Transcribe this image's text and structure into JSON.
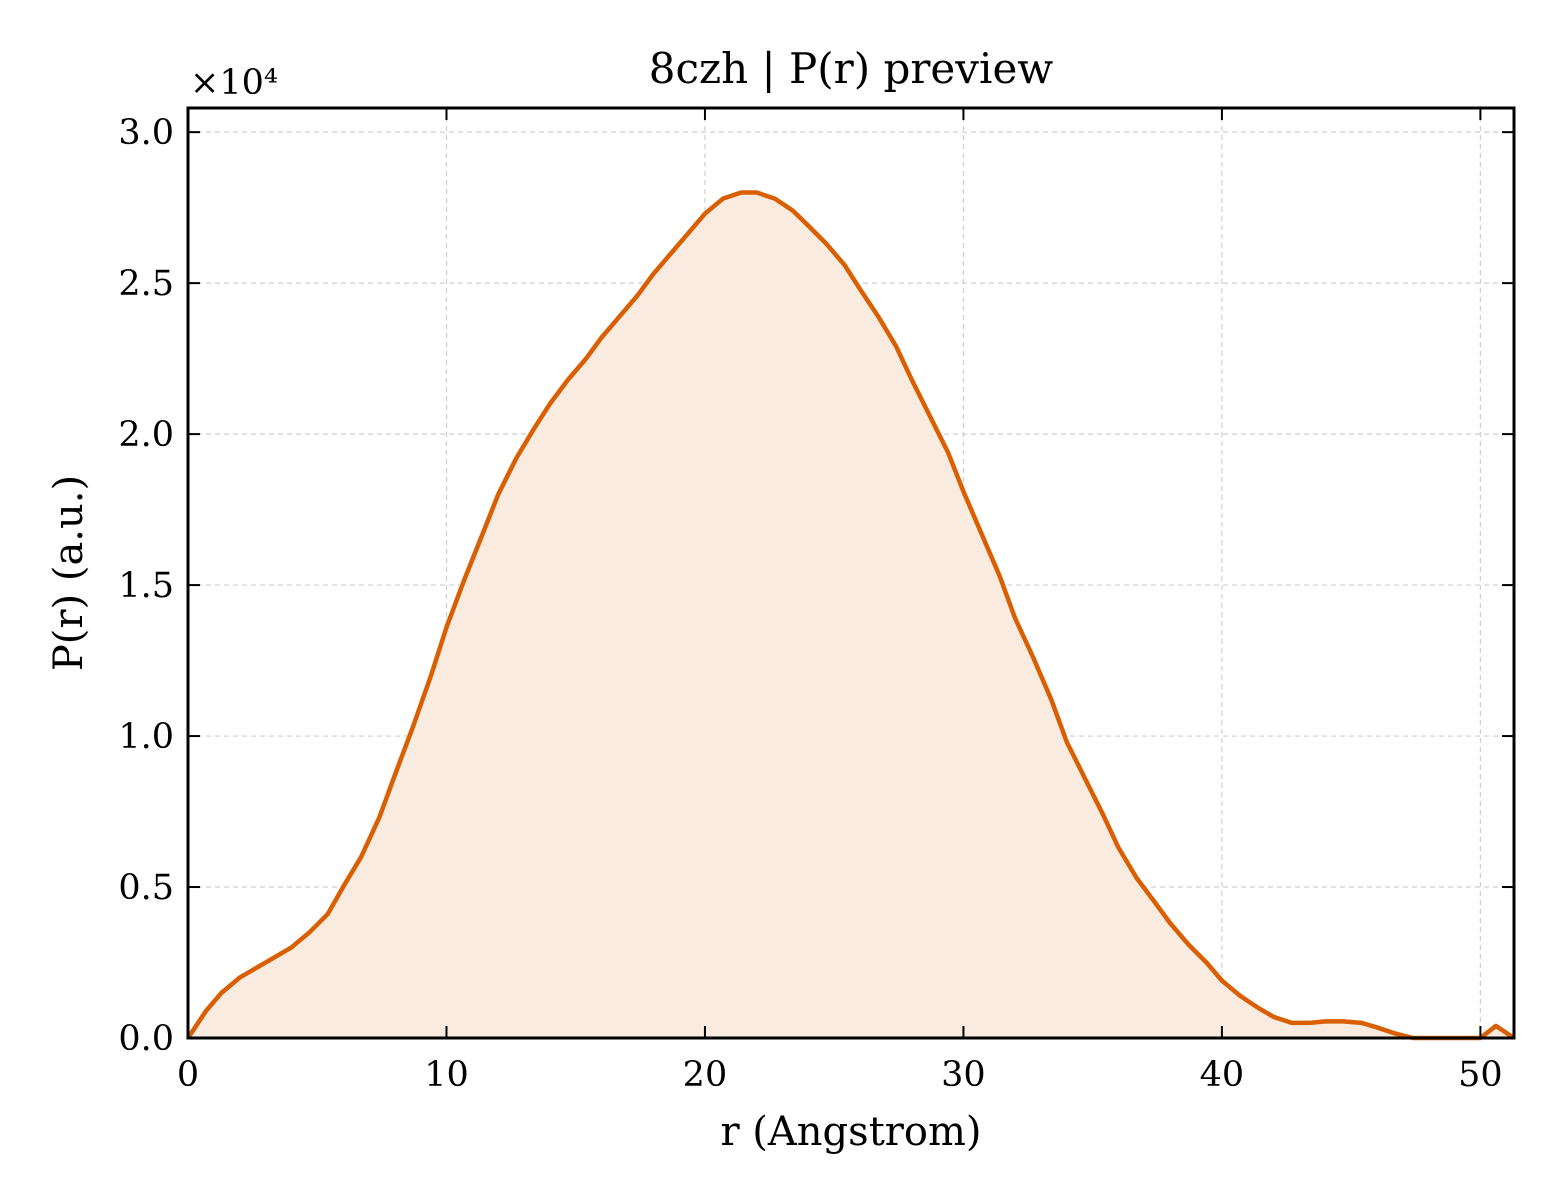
{
  "chart_data": {
    "type": "area",
    "title": "8czh | P(r) preview",
    "xlabel": "r (Angstrom)",
    "ylabel": "P(r) (a.u.)",
    "y_offset_label": "×10⁴",
    "xlim": [
      0,
      51.3
    ],
    "ylim": [
      0,
      3.08
    ],
    "y_scale_factor": 10000,
    "x_ticks": [
      0,
      10,
      20,
      30,
      40,
      50
    ],
    "y_ticks": [
      0.0,
      0.5,
      1.0,
      1.5,
      2.0,
      2.5,
      3.0
    ],
    "x_tick_labels": [
      "0",
      "10",
      "20",
      "30",
      "40",
      "50"
    ],
    "y_tick_labels": [
      "0.0",
      "0.5",
      "1.0",
      "1.5",
      "2.0",
      "2.5",
      "3.0"
    ],
    "grid": true,
    "line_color": "#d95f02",
    "fill_color": "#f9ebe0",
    "series": [
      {
        "x": [
          0,
          0.7,
          1.3,
          2,
          3,
          4,
          4.7,
          5.4,
          6,
          6.7,
          7.4,
          8,
          8.7,
          9.4,
          10,
          10.7,
          11.4,
          12,
          12.7,
          13.4,
          14,
          14.7,
          15.4,
          16,
          16.7,
          17.4,
          18,
          18.7,
          19.4,
          20,
          20.7,
          21.4,
          22,
          22.7,
          23.4,
          24,
          24.7,
          25.4,
          26,
          26.7,
          27.4,
          28,
          28.7,
          29.4,
          30,
          30.7,
          31.4,
          32,
          32.7,
          33.4,
          34,
          34.7,
          35.4,
          36,
          36.7,
          37.4,
          38,
          38.7,
          39.4,
          40,
          40.7,
          41.4,
          42,
          42.7,
          43.4,
          44,
          44.7,
          45.4,
          46,
          46.7,
          47.4,
          48,
          50,
          50.6,
          51.3
        ],
        "y": [
          0.0,
          0.09,
          0.15,
          0.2,
          0.25,
          0.3,
          0.35,
          0.41,
          0.5,
          0.6,
          0.73,
          0.87,
          1.03,
          1.2,
          1.36,
          1.52,
          1.67,
          1.8,
          1.92,
          2.02,
          2.1,
          2.18,
          2.25,
          2.32,
          2.39,
          2.46,
          2.53,
          2.6,
          2.67,
          2.73,
          2.78,
          2.8,
          2.8,
          2.78,
          2.74,
          2.69,
          2.63,
          2.56,
          2.48,
          2.39,
          2.29,
          2.18,
          2.06,
          1.94,
          1.81,
          1.67,
          1.53,
          1.39,
          1.26,
          1.12,
          0.98,
          0.86,
          0.74,
          0.63,
          0.53,
          0.45,
          0.38,
          0.31,
          0.25,
          0.19,
          0.14,
          0.1,
          0.07,
          0.05,
          0.05,
          0.055,
          0.055,
          0.05,
          0.035,
          0.015,
          0.0,
          0.0,
          0.0,
          0.04,
          0.0
        ]
      }
    ]
  }
}
